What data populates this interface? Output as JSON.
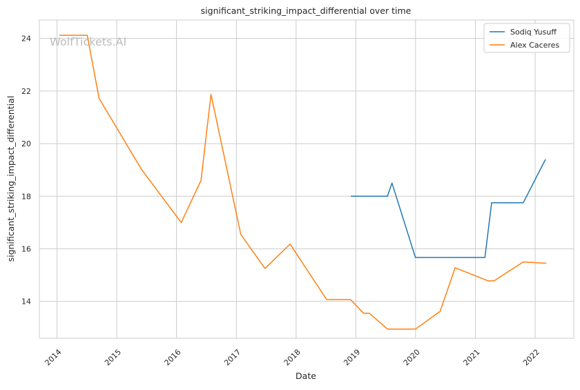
{
  "chart_data": {
    "type": "line",
    "title": "significant_striking_impact_differential over time",
    "xlabel": "Date",
    "ylabel": "significant_striking_impact_differential",
    "watermark": "WolfTickets.AI",
    "x_ticks": [
      "2014",
      "2015",
      "2016",
      "2017",
      "2018",
      "2019",
      "2020",
      "2021",
      "2022"
    ],
    "y_ticks": [
      14,
      16,
      18,
      20,
      22,
      24
    ],
    "xlim": [
      "2013-09-15",
      "2022-08-25"
    ],
    "ylim": [
      12.6,
      24.7
    ],
    "grid": true,
    "legend_position": "top-right",
    "colors": {
      "Sodiq Yusuff": "#1f77b4",
      "Alex Caceres": "#ff7f0e"
    },
    "series": [
      {
        "name": "Sodiq Yusuff",
        "points": [
          [
            "2018-12-01",
            18.0
          ],
          [
            "2019-07-13",
            18.0
          ],
          [
            "2019-08-10",
            18.5
          ],
          [
            "2019-12-31",
            15.67
          ],
          [
            "2021-02-28",
            15.67
          ],
          [
            "2021-04-10",
            17.75
          ],
          [
            "2021-10-20",
            17.75
          ],
          [
            "2022-03-05",
            19.4
          ]
        ]
      },
      {
        "name": "Alex Caceres",
        "points": [
          [
            "2014-01-15",
            24.12
          ],
          [
            "2014-07-05",
            24.12
          ],
          [
            "2014-09-15",
            21.72
          ],
          [
            "2015-06-01",
            19.02
          ],
          [
            "2016-01-30",
            17.0
          ],
          [
            "2016-05-30",
            18.6
          ],
          [
            "2016-07-30",
            21.87
          ],
          [
            "2017-01-28",
            16.55
          ],
          [
            "2017-06-25",
            15.25
          ],
          [
            "2017-11-25",
            16.18
          ],
          [
            "2018-07-07",
            14.07
          ],
          [
            "2018-11-30",
            14.07
          ],
          [
            "2019-02-17",
            13.55
          ],
          [
            "2019-03-25",
            13.55
          ],
          [
            "2019-07-13",
            12.95
          ],
          [
            "2020-01-01",
            12.95
          ],
          [
            "2020-05-30",
            13.62
          ],
          [
            "2020-08-30",
            15.28
          ],
          [
            "2021-03-20",
            14.78
          ],
          [
            "2021-04-25",
            14.78
          ],
          [
            "2021-10-20",
            15.5
          ],
          [
            "2022-03-10",
            15.45
          ]
        ]
      }
    ]
  }
}
